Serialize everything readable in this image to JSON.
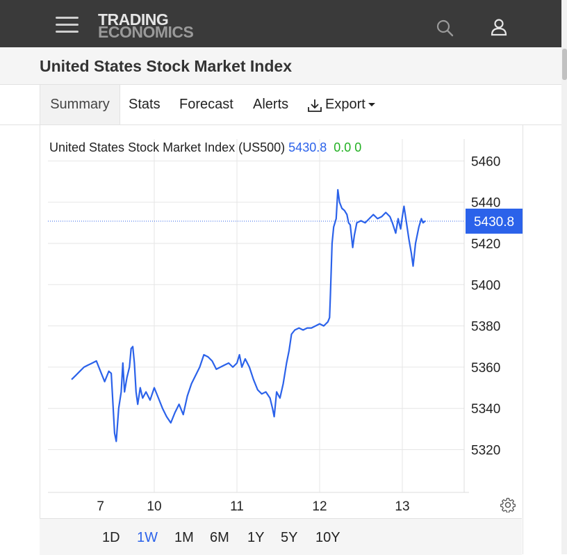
{
  "header": {
    "logo_line1": "TRADING",
    "logo_line2": "ECONOMICS",
    "icons": [
      "menu-icon",
      "search-icon",
      "user-icon"
    ]
  },
  "page": {
    "title": "United States Stock Market Index"
  },
  "tabs": [
    {
      "label": "Summary",
      "active": true
    },
    {
      "label": "Stats"
    },
    {
      "label": "Forecast"
    },
    {
      "label": "Alerts"
    },
    {
      "label": "Export",
      "icon": "download-icon",
      "dropdown": true
    }
  ],
  "chart_header": {
    "name": "United States Stock Market Index (US500)",
    "price": "5430.8",
    "change": "0.0",
    "change_pct": "0"
  },
  "current_price_label": "5430.8",
  "colors": {
    "line": "#2b62ea",
    "price_badge": "#2b62ea",
    "change": "#22b022",
    "navbar": "#3a3a3a"
  },
  "range_buttons": [
    {
      "label": "1D"
    },
    {
      "label": "1W",
      "active": true
    },
    {
      "label": "1M"
    },
    {
      "label": "6M"
    },
    {
      "label": "1Y"
    },
    {
      "label": "5Y"
    },
    {
      "label": "10Y"
    }
  ],
  "chart_data": {
    "type": "line",
    "title": "United States Stock Market Index (US500)",
    "x_ticks": [
      {
        "label": "7",
        "x": 0.35
      },
      {
        "label": "10",
        "x": 1.0
      },
      {
        "label": "11",
        "x": 2.0
      },
      {
        "label": "12",
        "x": 3.0
      },
      {
        "label": "13",
        "x": 4.0
      }
    ],
    "x_range": [
      0.0,
      4.72
    ],
    "y_ticks": [
      5320,
      5340,
      5360,
      5380,
      5400,
      5420,
      5440,
      5460
    ],
    "ylim": [
      5300,
      5468
    ],
    "grid": true,
    "current_value": 5430.8,
    "series": [
      {
        "values": [
          [
            0.0,
            5354
          ],
          [
            0.05,
            5356
          ],
          [
            0.1,
            5358
          ],
          [
            0.15,
            5360
          ],
          [
            0.2,
            5361
          ],
          [
            0.25,
            5362
          ],
          [
            0.3,
            5363
          ],
          [
            0.35,
            5358
          ],
          [
            0.4,
            5353
          ],
          [
            0.45,
            5358
          ],
          [
            0.48,
            5357
          ],
          [
            0.52,
            5328
          ],
          [
            0.54,
            5324
          ],
          [
            0.57,
            5340
          ],
          [
            0.6,
            5348
          ],
          [
            0.62,
            5362
          ],
          [
            0.64,
            5348
          ],
          [
            0.67,
            5355
          ],
          [
            0.7,
            5360
          ],
          [
            0.72,
            5369
          ],
          [
            0.74,
            5370
          ],
          [
            0.76,
            5362
          ],
          [
            0.78,
            5348
          ],
          [
            0.8,
            5342
          ],
          [
            0.83,
            5350
          ],
          [
            0.86,
            5345
          ],
          [
            0.9,
            5348
          ],
          [
            0.95,
            5344
          ],
          [
            1.0,
            5350
          ],
          [
            1.05,
            5345
          ],
          [
            1.1,
            5340
          ],
          [
            1.15,
            5336
          ],
          [
            1.2,
            5333
          ],
          [
            1.25,
            5338
          ],
          [
            1.3,
            5342
          ],
          [
            1.35,
            5337
          ],
          [
            1.4,
            5346
          ],
          [
            1.45,
            5352
          ],
          [
            1.5,
            5356
          ],
          [
            1.55,
            5360
          ],
          [
            1.6,
            5366
          ],
          [
            1.65,
            5365
          ],
          [
            1.7,
            5363
          ],
          [
            1.75,
            5359
          ],
          [
            1.8,
            5360
          ],
          [
            1.85,
            5361
          ],
          [
            1.9,
            5362
          ],
          [
            1.95,
            5360
          ],
          [
            2.0,
            5362
          ],
          [
            2.03,
            5366
          ],
          [
            2.06,
            5360
          ],
          [
            2.1,
            5364
          ],
          [
            2.15,
            5360
          ],
          [
            2.2,
            5354
          ],
          [
            2.25,
            5349
          ],
          [
            2.3,
            5347
          ],
          [
            2.35,
            5348
          ],
          [
            2.4,
            5345
          ],
          [
            2.43,
            5340
          ],
          [
            2.45,
            5336
          ],
          [
            2.48,
            5348
          ],
          [
            2.52,
            5345
          ],
          [
            2.56,
            5352
          ],
          [
            2.6,
            5362
          ],
          [
            2.63,
            5368
          ],
          [
            2.66,
            5376
          ],
          [
            2.7,
            5378
          ],
          [
            2.75,
            5379
          ],
          [
            2.8,
            5378
          ],
          [
            2.85,
            5379
          ],
          [
            2.9,
            5379
          ],
          [
            2.95,
            5380
          ],
          [
            3.0,
            5381
          ],
          [
            3.05,
            5380
          ],
          [
            3.1,
            5382
          ],
          [
            3.12,
            5384
          ],
          [
            3.13,
            5395
          ],
          [
            3.15,
            5420
          ],
          [
            3.17,
            5428
          ],
          [
            3.2,
            5432
          ],
          [
            3.22,
            5446
          ],
          [
            3.24,
            5440
          ],
          [
            3.27,
            5437
          ],
          [
            3.3,
            5436
          ],
          [
            3.33,
            5434
          ],
          [
            3.35,
            5430
          ],
          [
            3.37,
            5429
          ],
          [
            3.4,
            5418
          ],
          [
            3.42,
            5424
          ],
          [
            3.45,
            5430
          ],
          [
            3.5,
            5431
          ],
          [
            3.55,
            5430
          ],
          [
            3.6,
            5432
          ],
          [
            3.65,
            5434
          ],
          [
            3.7,
            5432
          ],
          [
            3.75,
            5433
          ],
          [
            3.8,
            5435
          ],
          [
            3.85,
            5433
          ],
          [
            3.88,
            5430
          ],
          [
            3.92,
            5425
          ],
          [
            3.95,
            5432
          ],
          [
            3.98,
            5427
          ],
          [
            4.0,
            5433
          ],
          [
            4.02,
            5438
          ],
          [
            4.05,
            5430
          ],
          [
            4.08,
            5422
          ],
          [
            4.11,
            5415
          ],
          [
            4.13,
            5409
          ],
          [
            4.16,
            5420
          ],
          [
            4.2,
            5428
          ],
          [
            4.23,
            5432
          ],
          [
            4.25,
            5430
          ],
          [
            4.28,
            5431
          ]
        ]
      }
    ]
  }
}
